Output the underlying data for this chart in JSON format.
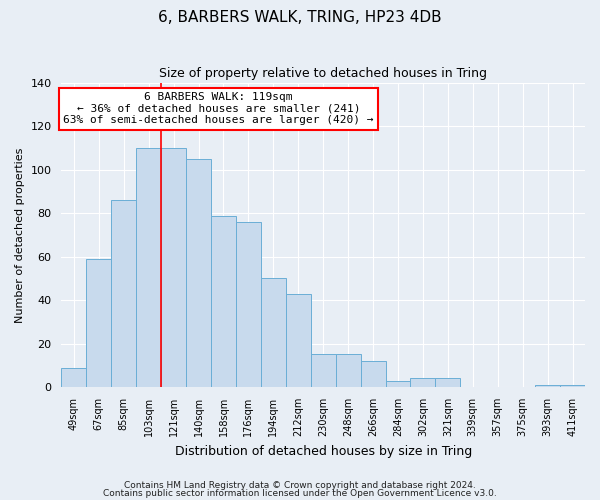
{
  "title": "6, BARBERS WALK, TRING, HP23 4DB",
  "subtitle": "Size of property relative to detached houses in Tring",
  "xlabel": "Distribution of detached houses by size in Tring",
  "ylabel": "Number of detached properties",
  "bar_color": "#c8daed",
  "bar_edge_color": "#6aaed6",
  "background_color": "#e8eef5",
  "grid_color": "#ffffff",
  "categories": [
    "49sqm",
    "67sqm",
    "85sqm",
    "103sqm",
    "121sqm",
    "140sqm",
    "158sqm",
    "176sqm",
    "194sqm",
    "212sqm",
    "230sqm",
    "248sqm",
    "266sqm",
    "284sqm",
    "302sqm",
    "321sqm",
    "339sqm",
    "357sqm",
    "375sqm",
    "393sqm",
    "411sqm"
  ],
  "values": [
    9,
    59,
    86,
    110,
    110,
    105,
    79,
    76,
    50,
    43,
    15,
    15,
    12,
    3,
    4,
    4,
    0,
    0,
    0,
    1,
    1
  ],
  "ylim": [
    0,
    140
  ],
  "yticks": [
    0,
    20,
    40,
    60,
    80,
    100,
    120,
    140
  ],
  "red_line_index": 4,
  "annotation_title": "6 BARBERS WALK: 119sqm",
  "annotation_line1": "← 36% of detached houses are smaller (241)",
  "annotation_line2": "63% of semi-detached houses are larger (420) →",
  "footer1": "Contains HM Land Registry data © Crown copyright and database right 2024.",
  "footer2": "Contains public sector information licensed under the Open Government Licence v3.0."
}
